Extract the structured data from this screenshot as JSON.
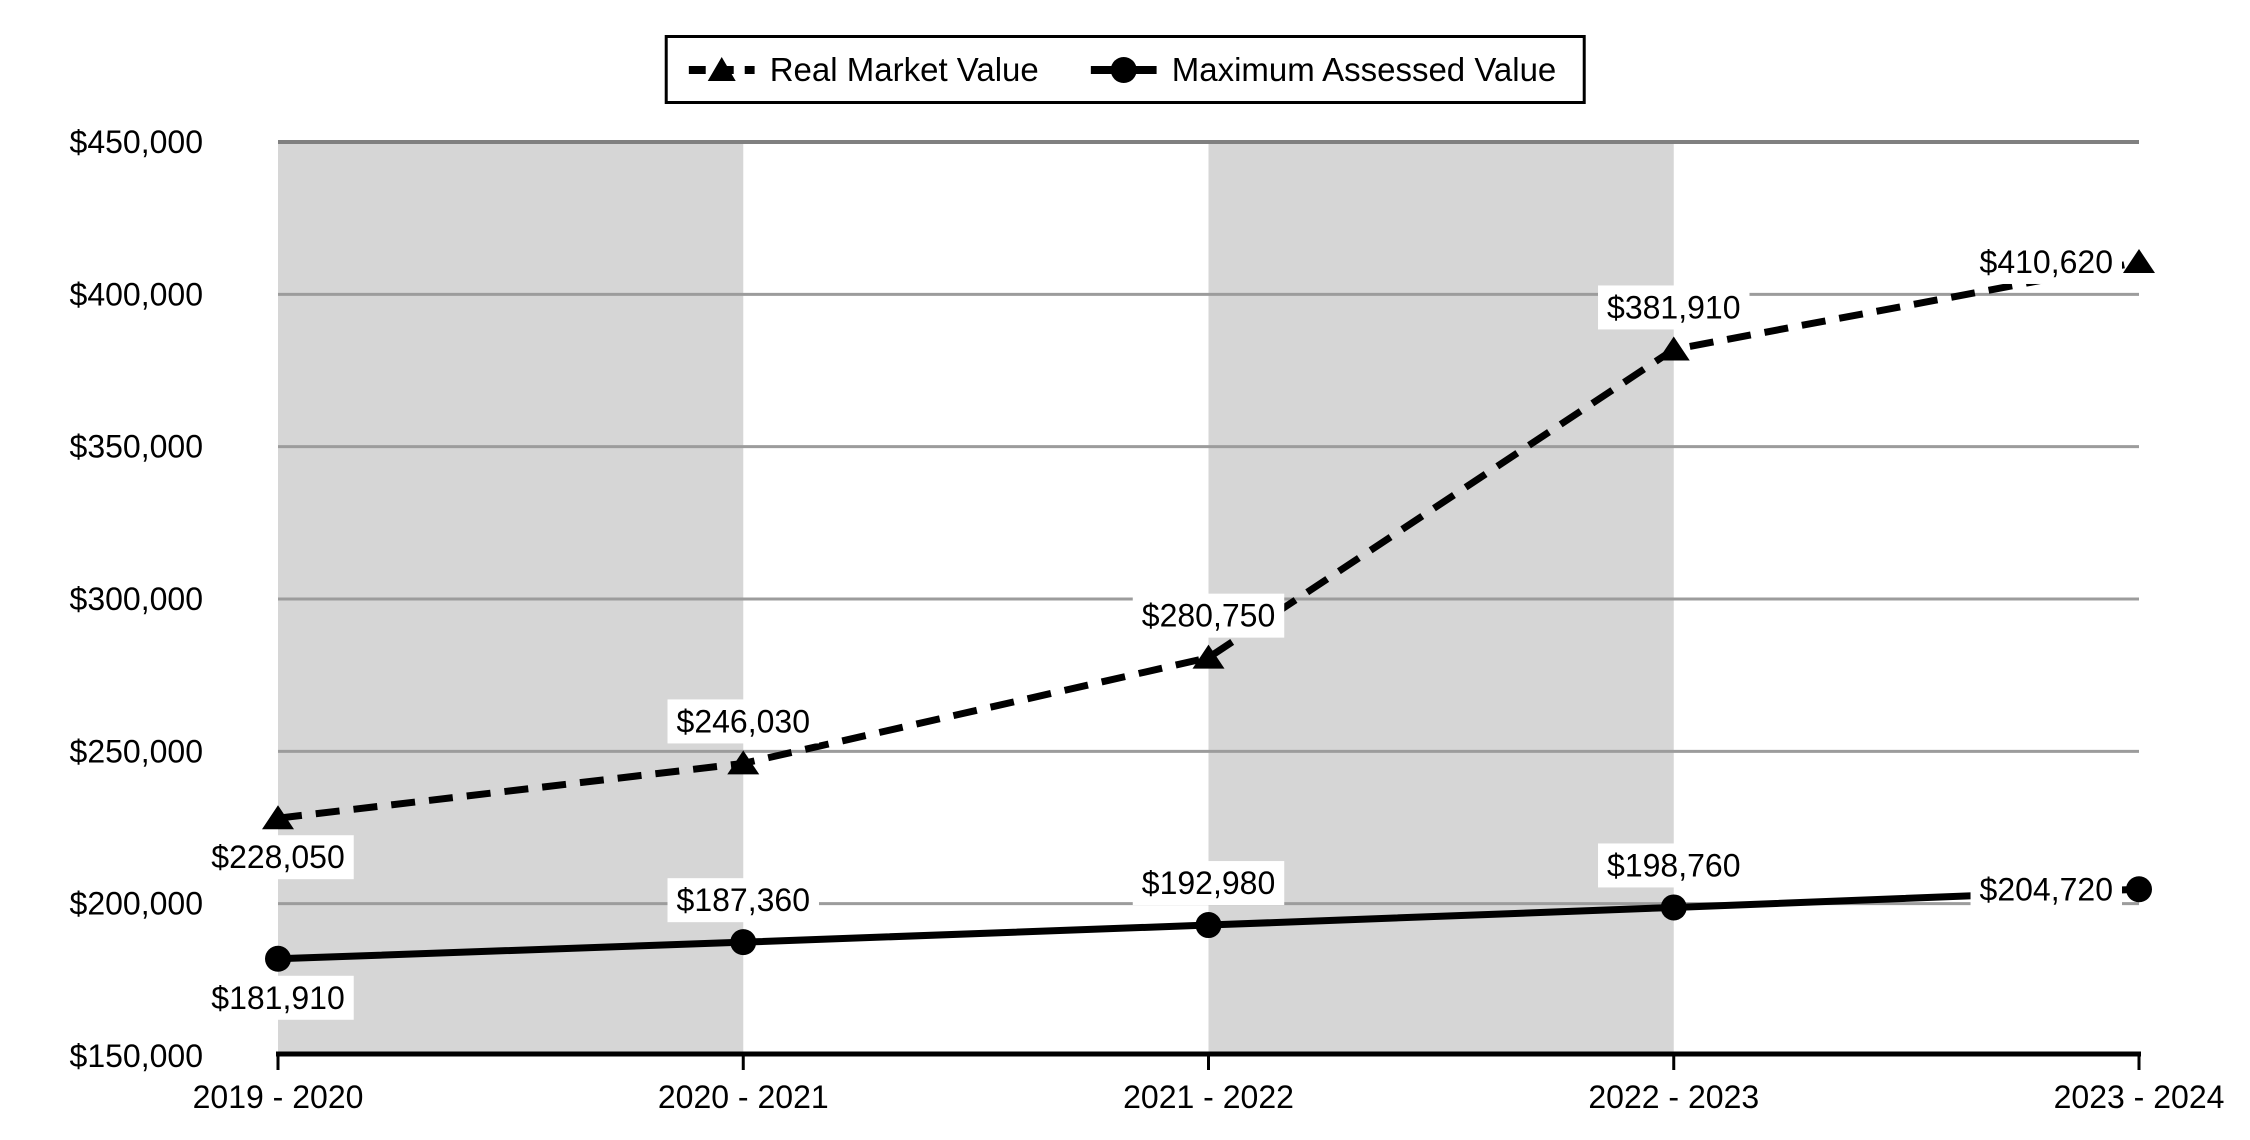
{
  "legend": {
    "items": [
      {
        "label": "Real Market Value",
        "line_style": "dashed",
        "marker": "triangle"
      },
      {
        "label": "Maximum Assessed Value",
        "line_style": "solid",
        "marker": "circle"
      }
    ]
  },
  "chart_data": {
    "type": "line",
    "categories": [
      "2019 - 2020",
      "2020 - 2021",
      "2021 - 2022",
      "2022 - 2023",
      "2023 - 2024"
    ],
    "series": [
      {
        "name": "Real Market Value",
        "line_style": "dashed",
        "marker": "triangle",
        "values": [
          228050,
          246030,
          280750,
          381910,
          410620
        ],
        "labels": [
          "$228,050",
          "$246,030",
          "$280,750",
          "$381,910",
          "$410,620"
        ],
        "label_placements": [
          "below",
          "above",
          "above",
          "above",
          "left"
        ]
      },
      {
        "name": "Maximum Assessed Value",
        "line_style": "solid",
        "marker": "circle",
        "values": [
          181910,
          187360,
          192980,
          198760,
          204720
        ],
        "labels": [
          "$181,910",
          "$187,360",
          "$192,980",
          "$198,760",
          "$204,720"
        ],
        "label_placements": [
          "below",
          "above",
          "above",
          "above",
          "left"
        ]
      }
    ],
    "ylim": [
      150000,
      450000
    ],
    "ytick_step": 50000,
    "ytick_labels": [
      "$150,000",
      "$200,000",
      "$250,000",
      "$300,000",
      "$350,000",
      "$400,000",
      "$450,000"
    ],
    "grid": "horizontal",
    "legend_position": "top-center",
    "shaded_band_pairs": [
      [
        0,
        1
      ],
      [
        2,
        3
      ]
    ],
    "colors": {
      "series_line": "#000000",
      "band": "#d6d6d6",
      "gridline": "#9c9c9c",
      "top_gridline": "#808080",
      "axis": "#000000",
      "text": "#000000",
      "label_background": "#ffffff",
      "legend_border": "#000000"
    }
  }
}
